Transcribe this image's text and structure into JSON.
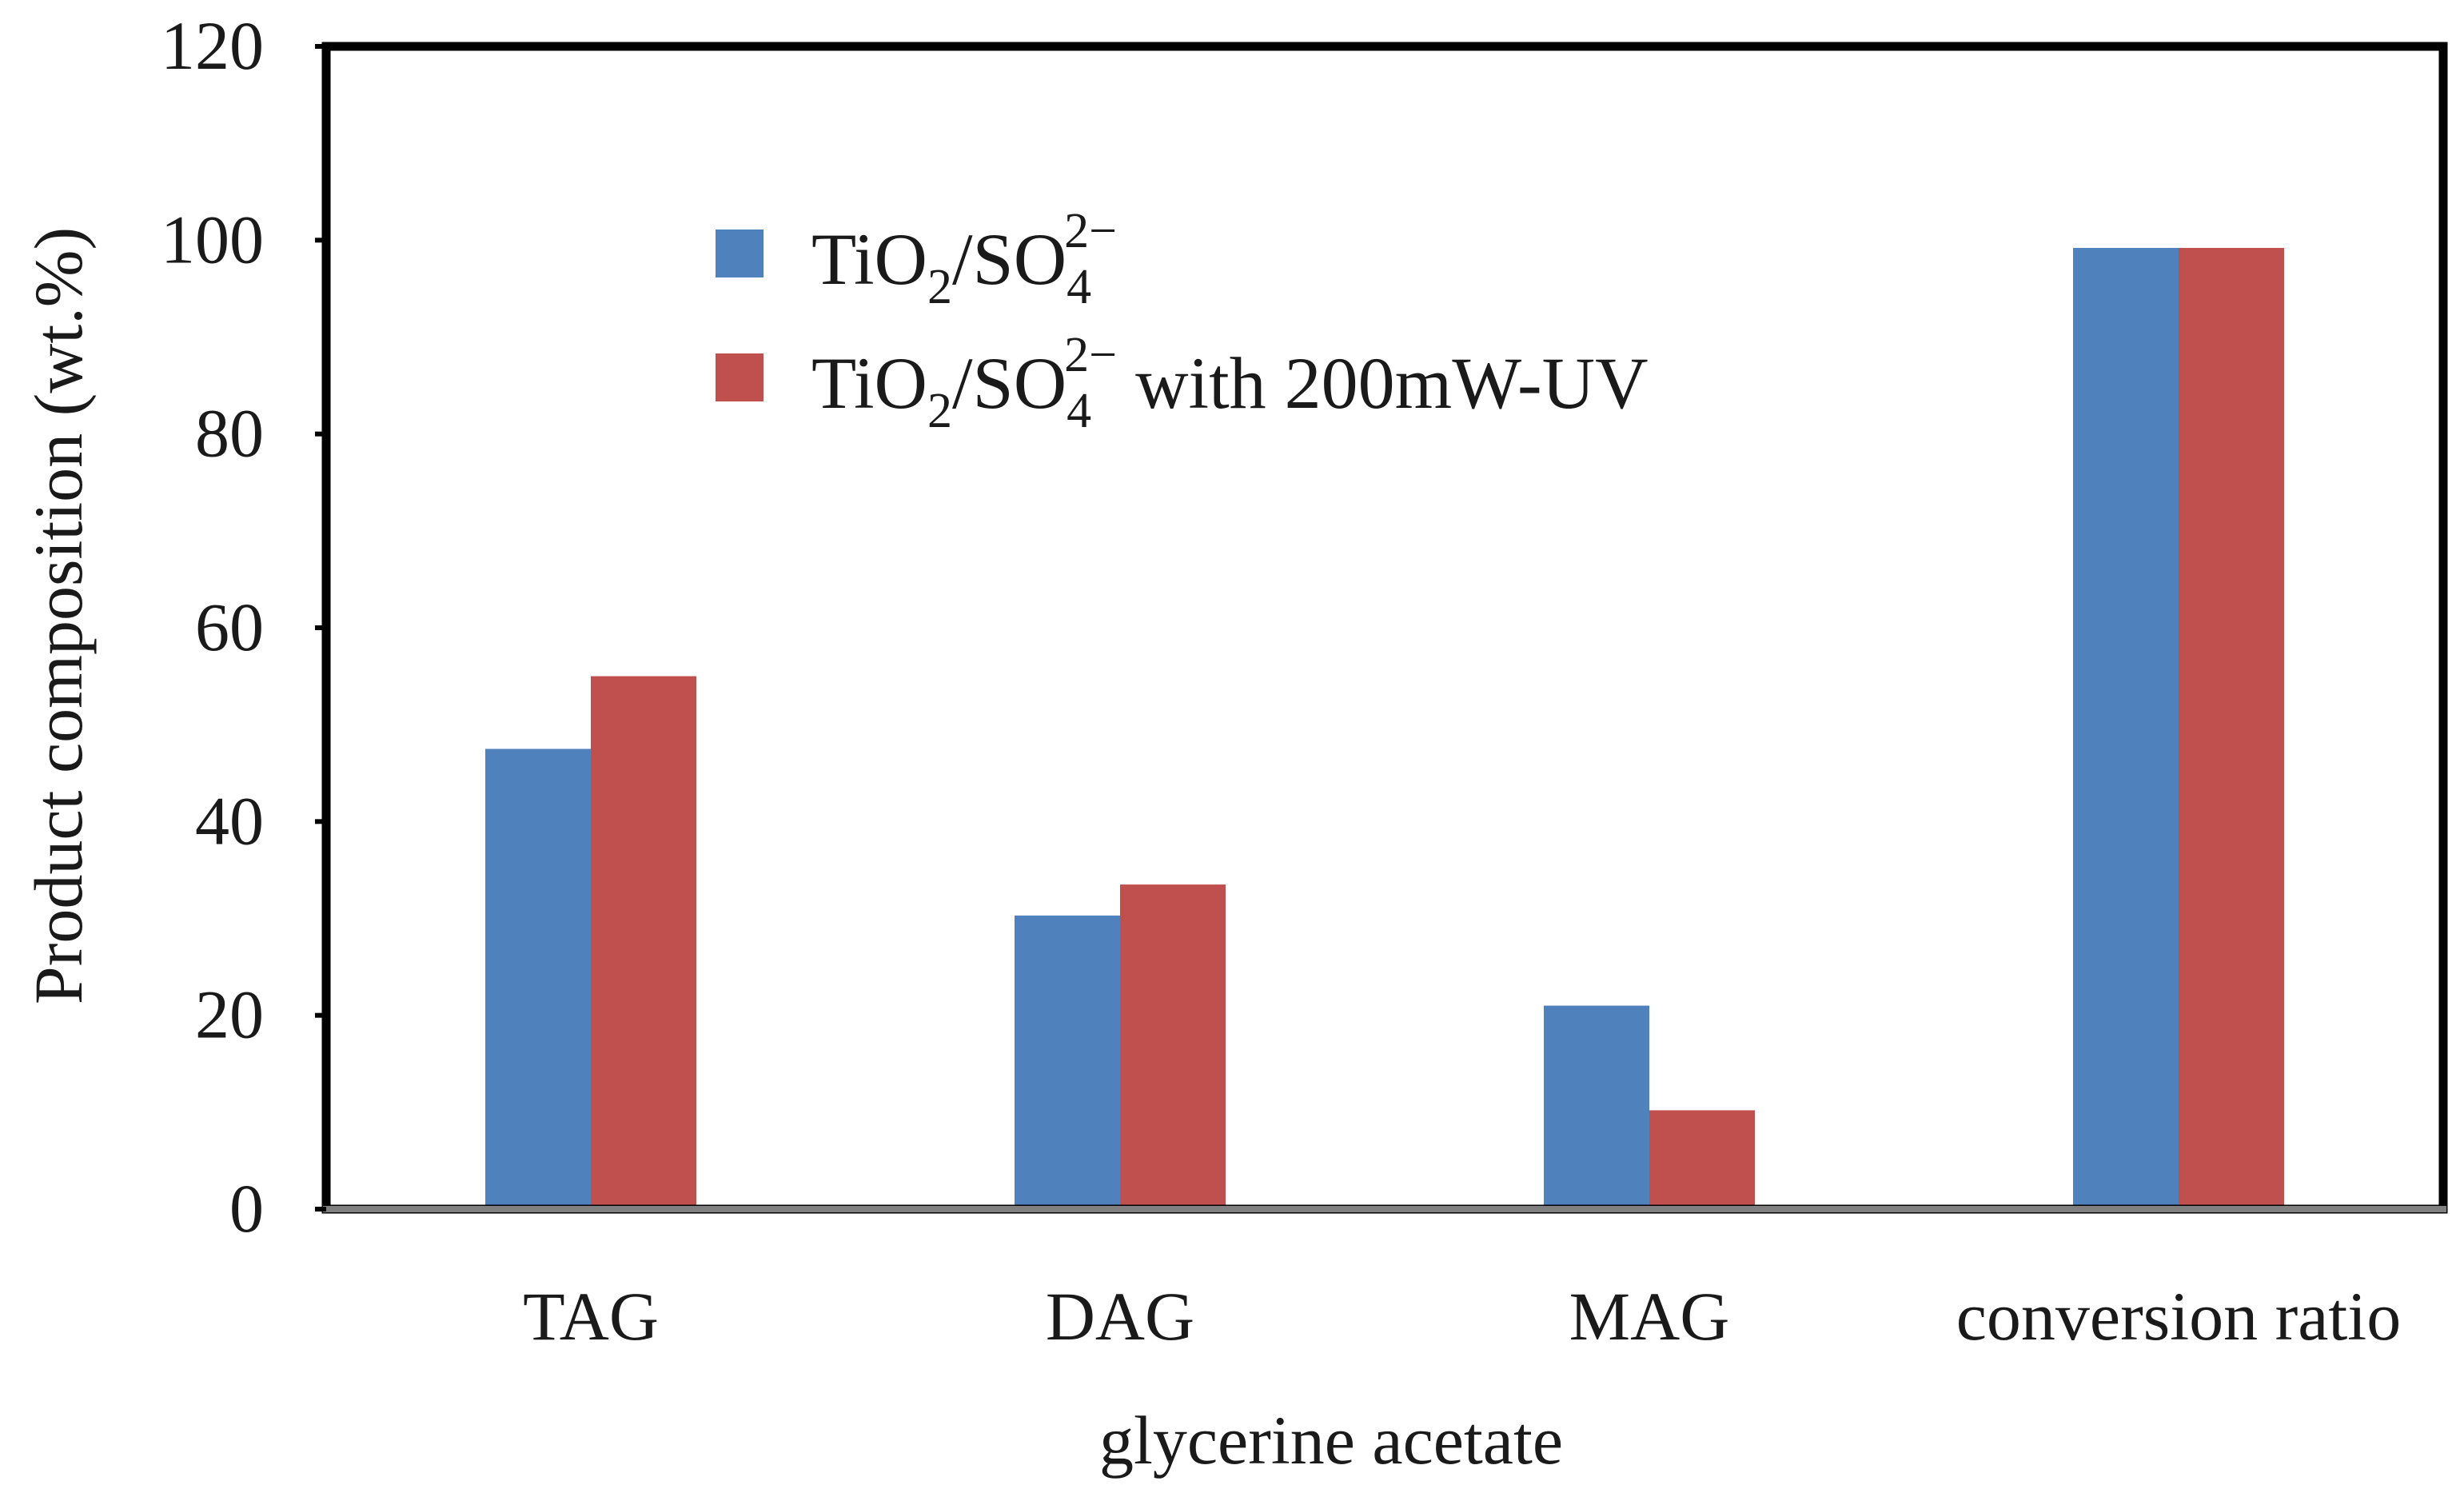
{
  "chart_data": {
    "type": "bar",
    "categories": [
      "TAG",
      "DAG",
      "MAG",
      "conversion ratio"
    ],
    "series": [
      {
        "name": "TiO2/SO42−",
        "legend": {
          "base": "TiO",
          "sub1": "2",
          "mid": "/SO",
          "sub2": "4",
          "sup": "2−",
          "suffix": ""
        },
        "values": [
          47.5,
          30.3,
          21.0,
          99.2
        ],
        "color": "#4f81bd"
      },
      {
        "name": "TiO2/SO42− with 200mW-UV",
        "legend": {
          "base": "TiO",
          "sub1": "2",
          "mid": "/SO",
          "sub2": "4",
          "sup": "2−",
          "suffix": " with 200mW-UV"
        },
        "values": [
          55.0,
          33.5,
          10.2,
          99.2
        ],
        "color": "#c0504d"
      }
    ],
    "xlabel": "glycerine acetate",
    "ylabel": "Product composition (wt.%)",
    "ylim": [
      0,
      120
    ],
    "yticks": [
      0,
      20,
      40,
      60,
      80,
      100,
      120
    ],
    "grid": false,
    "legend_position": "top-left"
  }
}
